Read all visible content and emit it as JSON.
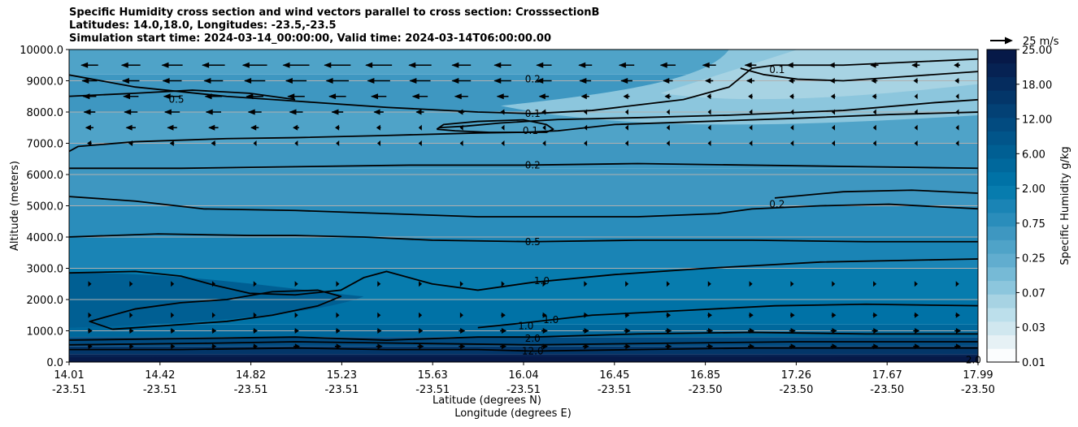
{
  "titles": {
    "line1": "Specific Humidity cross section and wind vectors parallel to cross section: CrosssectionB",
    "line2": "Latitudes: 14.0,18.0, Longitudes: -23.5,-23.5",
    "line3": "Simulation start time: 2024-03-14_00:00:00, Valid time: 2024-03-14T06:00:00.00"
  },
  "chart_data": {
    "type": "heatmap",
    "title": "Specific Humidity cross section and wind vectors parallel to cross section: CrosssectionB",
    "ylabel": "Altitude (meters)",
    "xlabel_line1": "Latitude (degrees N)",
    "xlabel_line2": "Longitude (degrees E)",
    "ylim": [
      0,
      10000
    ],
    "xlim": [
      14.01,
      17.99
    ],
    "y_ticks": [
      "0.0",
      "1000.0",
      "2000.0",
      "3000.0",
      "4000.0",
      "5000.0",
      "6000.0",
      "7000.0",
      "8000.0",
      "9000.0",
      "10000.0"
    ],
    "x_ticks": [
      {
        "lat": "14.01",
        "lon": "-23.51"
      },
      {
        "lat": "14.42",
        "lon": "-23.51"
      },
      {
        "lat": "14.82",
        "lon": "-23.51"
      },
      {
        "lat": "15.23",
        "lon": "-23.51"
      },
      {
        "lat": "15.63",
        "lon": "-23.51"
      },
      {
        "lat": "16.04",
        "lon": "-23.51"
      },
      {
        "lat": "16.45",
        "lon": "-23.51"
      },
      {
        "lat": "16.85",
        "lon": "-23.50"
      },
      {
        "lat": "17.26",
        "lon": "-23.50"
      },
      {
        "lat": "17.67",
        "lon": "-23.50"
      },
      {
        "lat": "17.99",
        "lon": "-23.50"
      }
    ],
    "grid": true,
    "colorbar": {
      "label": "Specific Humidity g/kg",
      "tick_labels": [
        "0.01",
        "0.03",
        "0.07",
        "0.25",
        "0.75",
        "2.00",
        "6.00",
        "12.00",
        "18.00",
        "25.00"
      ],
      "colors": [
        "#fbfdfe",
        "#e6f1f5",
        "#d0e7ef",
        "#bcdfeb",
        "#a7d3e3",
        "#8cc6dd",
        "#76bad6",
        "#61adcf",
        "#4fa3c8",
        "#3e97c1",
        "#2a8dbb",
        "#1a84b5",
        "#077cae",
        "#0072a6",
        "#00689c",
        "#005f93",
        "#01558a",
        "#024b80",
        "#034175",
        "#033669",
        "#052c5e",
        "#062253",
        "#061948"
      ]
    },
    "quiver_key": "25 m/s",
    "contour_levels": [
      "0.1",
      "0.2",
      "0.5",
      "1.0",
      "2.0",
      "12.0"
    ],
    "contour_labels": [
      {
        "text": "0.2",
        "lat": 16.04,
        "alt": 9050
      },
      {
        "text": "0.1",
        "lat": 16.04,
        "alt": 7950
      },
      {
        "text": "0.1",
        "lat": 16.03,
        "alt": 7400
      },
      {
        "text": "0.2",
        "lat": 16.04,
        "alt": 6300
      },
      {
        "text": "0.5",
        "lat": 16.04,
        "alt": 3850
      },
      {
        "text": "1.0",
        "lat": 16.08,
        "alt": 2600
      },
      {
        "text": "1.0",
        "lat": 16.01,
        "alt": 1150
      },
      {
        "text": "1.0",
        "lat": 16.12,
        "alt": 1350
      },
      {
        "text": "2.0",
        "lat": 16.04,
        "alt": 750
      },
      {
        "text": "12.0",
        "lat": 16.04,
        "alt": 350
      },
      {
        "text": "0.5",
        "lat": 14.48,
        "alt": 8400
      },
      {
        "text": "0.1",
        "lat": 17.11,
        "alt": 9350
      },
      {
        "text": "0.2",
        "lat": 17.11,
        "alt": 5050
      },
      {
        "text": "2.0",
        "lat": 17.97,
        "alt": 60
      }
    ],
    "contours": [
      {
        "level": "0.1",
        "points": [
          [
            14.0,
            6700
          ],
          [
            14.05,
            6900
          ],
          [
            14.3,
            7050
          ],
          [
            14.7,
            7150
          ],
          [
            15.0,
            7180
          ],
          [
            15.4,
            7250
          ],
          [
            15.8,
            7330
          ],
          [
            16.0,
            7350
          ],
          [
            16.15,
            7400
          ],
          [
            16.4,
            7600
          ],
          [
            16.8,
            7700
          ],
          [
            17.2,
            7800
          ],
          [
            17.6,
            7920
          ],
          [
            18.0,
            8000
          ]
        ]
      },
      {
        "level": "0.1",
        "points": [
          [
            15.63,
            7500
          ],
          [
            15.75,
            7550
          ],
          [
            15.9,
            7650
          ],
          [
            16.15,
            7760
          ],
          [
            16.5,
            7820
          ],
          [
            16.9,
            7900
          ],
          [
            17.4,
            8050
          ],
          [
            17.8,
            8300
          ],
          [
            18.0,
            8400
          ]
        ]
      },
      {
        "level": "0.1",
        "points": [
          [
            15.62,
            7450
          ],
          [
            15.7,
            7400
          ],
          [
            15.85,
            7350
          ],
          [
            16.1,
            7350
          ],
          [
            16.13,
            7450
          ],
          [
            16.1,
            7600
          ],
          [
            16.0,
            7750
          ],
          [
            15.8,
            7700
          ],
          [
            15.65,
            7600
          ],
          [
            15.62,
            7450
          ]
        ]
      },
      {
        "level": "0.1",
        "points": [
          [
            16.95,
            9400
          ],
          [
            17.05,
            9200
          ],
          [
            17.2,
            9050
          ],
          [
            17.4,
            9000
          ],
          [
            17.7,
            9150
          ],
          [
            18.0,
            9300
          ]
        ]
      },
      {
        "level": "0.2",
        "points": [
          [
            14.0,
            9200
          ],
          [
            14.3,
            8800
          ],
          [
            14.7,
            8500
          ],
          [
            15.0,
            8350
          ],
          [
            15.4,
            8150
          ],
          [
            15.8,
            8000
          ],
          [
            16.04,
            7950
          ],
          [
            16.3,
            8050
          ],
          [
            16.7,
            8400
          ],
          [
            16.9,
            8800
          ],
          [
            17.0,
            9400
          ],
          [
            17.1,
            9500
          ],
          [
            17.4,
            9500
          ],
          [
            17.7,
            9600
          ],
          [
            18.0,
            9700
          ]
        ]
      },
      {
        "level": "0.2",
        "points": [
          [
            14.0,
            6200
          ],
          [
            14.5,
            6200
          ],
          [
            15.0,
            6250
          ],
          [
            15.5,
            6300
          ],
          [
            16.0,
            6300
          ],
          [
            16.5,
            6350
          ],
          [
            17.0,
            6300
          ],
          [
            17.5,
            6250
          ],
          [
            18.0,
            6200
          ]
        ]
      },
      {
        "level": "0.2",
        "points": [
          [
            14.0,
            5300
          ],
          [
            14.3,
            5150
          ],
          [
            14.6,
            4900
          ],
          [
            15.0,
            4850
          ],
          [
            15.4,
            4750
          ],
          [
            15.8,
            4650
          ],
          [
            16.04,
            4650
          ],
          [
            16.5,
            4650
          ],
          [
            16.85,
            4750
          ],
          [
            17.0,
            4900
          ],
          [
            17.3,
            5000
          ],
          [
            17.6,
            5050
          ],
          [
            18.0,
            4900
          ]
        ]
      },
      {
        "level": "0.2",
        "points": [
          [
            17.1,
            5250
          ],
          [
            17.4,
            5450
          ],
          [
            17.7,
            5500
          ],
          [
            18.0,
            5400
          ]
        ]
      },
      {
        "level": "0.5",
        "points": [
          [
            14.0,
            4000
          ],
          [
            14.4,
            4100
          ],
          [
            14.8,
            4050
          ],
          [
            15.0,
            4050
          ],
          [
            15.3,
            4000
          ],
          [
            15.6,
            3900
          ],
          [
            16.04,
            3850
          ],
          [
            16.5,
            3900
          ],
          [
            17.0,
            3900
          ],
          [
            17.5,
            3850
          ],
          [
            18.0,
            3850
          ]
        ]
      },
      {
        "level": "0.5",
        "points": [
          [
            14.0,
            8500
          ],
          [
            14.3,
            8600
          ],
          [
            14.55,
            8700
          ],
          [
            14.8,
            8600
          ],
          [
            15.0,
            8400
          ]
        ]
      },
      {
        "level": "1.0",
        "points": [
          [
            14.0,
            2850
          ],
          [
            14.3,
            2900
          ],
          [
            14.5,
            2750
          ],
          [
            14.65,
            2450
          ],
          [
            14.8,
            2200
          ],
          [
            15.0,
            2150
          ],
          [
            15.2,
            2300
          ],
          [
            15.3,
            2700
          ],
          [
            15.4,
            2900
          ],
          [
            15.6,
            2500
          ],
          [
            15.8,
            2300
          ],
          [
            16.04,
            2550
          ],
          [
            16.4,
            2800
          ],
          [
            16.8,
            3000
          ],
          [
            17.3,
            3200
          ],
          [
            18.0,
            3300
          ]
        ]
      },
      {
        "level": "1.0",
        "points": [
          [
            14.2,
            1050
          ],
          [
            14.4,
            1150
          ],
          [
            14.7,
            1300
          ],
          [
            14.9,
            1500
          ],
          [
            15.1,
            1800
          ],
          [
            15.2,
            2100
          ],
          [
            15.1,
            2300
          ],
          [
            14.9,
            2250
          ],
          [
            14.7,
            2000
          ],
          [
            14.5,
            1900
          ],
          [
            14.3,
            1700
          ],
          [
            14.1,
            1300
          ],
          [
            14.2,
            1050
          ]
        ]
      },
      {
        "level": "1.0",
        "points": [
          [
            15.8,
            1100
          ],
          [
            16.0,
            1250
          ],
          [
            16.3,
            1500
          ],
          [
            16.7,
            1650
          ],
          [
            17.1,
            1800
          ],
          [
            17.5,
            1850
          ],
          [
            18.0,
            1800
          ]
        ]
      },
      {
        "level": "2.0",
        "points": [
          [
            14.0,
            700
          ],
          [
            14.5,
            750
          ],
          [
            15.0,
            800
          ],
          [
            15.4,
            700
          ],
          [
            15.8,
            800
          ],
          [
            16.04,
            800
          ],
          [
            16.5,
            900
          ],
          [
            17.0,
            950
          ],
          [
            17.5,
            900
          ],
          [
            18.0,
            900
          ]
        ]
      },
      {
        "level": "12.0",
        "points": [
          [
            14.0,
            400
          ],
          [
            14.5,
            400
          ],
          [
            15.0,
            450
          ],
          [
            15.4,
            400
          ],
          [
            15.8,
            400
          ],
          [
            16.04,
            350
          ],
          [
            16.5,
            400
          ],
          [
            17.0,
            450
          ],
          [
            17.5,
            450
          ],
          [
            18.0,
            450
          ]
        ]
      },
      {
        "level": "12.0",
        "points": [
          [
            14.0,
            550
          ],
          [
            14.6,
            600
          ],
          [
            15.0,
            650
          ],
          [
            15.5,
            600
          ],
          [
            16.04,
            550
          ],
          [
            16.6,
            600
          ],
          [
            17.2,
            650
          ],
          [
            18.0,
            650
          ]
        ]
      }
    ],
    "wind_rows": [
      {
        "alt": 9500,
        "u": [
          -9,
          -10,
          -11,
          -12,
          -13,
          -14,
          -14,
          -14,
          -12,
          -10,
          -9,
          -8,
          -7,
          -8,
          -8,
          -7,
          -6,
          -5,
          -4,
          -4,
          -4,
          -3
        ]
      },
      {
        "alt": 9000,
        "u": [
          -8,
          -9,
          -10,
          -10,
          -11,
          -11,
          -12,
          -12,
          -11,
          -10,
          -9,
          -8,
          -6,
          -6,
          -5,
          -4,
          -4,
          -3,
          -3,
          -3,
          -2,
          -2
        ]
      },
      {
        "alt": 8500,
        "u": [
          -7,
          -8,
          -9,
          -9,
          -9,
          -9,
          -9,
          -8,
          -8,
          -7,
          -6,
          -5,
          -4,
          -3,
          -3,
          -2,
          -2,
          -2,
          -2,
          -2,
          -1,
          -1
        ]
      },
      {
        "alt": 8000,
        "u": [
          -6,
          -7,
          -8,
          -8,
          -7,
          -7,
          -6,
          -5,
          -4,
          -3,
          -2,
          -2,
          -1,
          -1,
          -1,
          -1,
          -1,
          -1,
          -1,
          -1,
          -1,
          -1
        ]
      },
      {
        "alt": 7500,
        "u": [
          -4,
          -5,
          -5,
          -5,
          -4,
          -3,
          -2,
          -2,
          -1,
          -1,
          -1,
          -1,
          -1,
          -1,
          -1,
          -1,
          -1,
          -1,
          -1,
          -1,
          -1,
          -1
        ]
      },
      {
        "alt": 7000,
        "u": [
          -2,
          -2,
          -2,
          -2,
          -1,
          -1,
          -1,
          -1,
          -1,
          -1,
          -1,
          -1,
          -1,
          -1,
          -1,
          -1,
          -1,
          -1,
          -1,
          -1,
          -1,
          -1
        ]
      },
      {
        "alt": 2500,
        "u": [
          1,
          1,
          1,
          1,
          1,
          1,
          1,
          1,
          1,
          1,
          1,
          1,
          1,
          1,
          1,
          1,
          1,
          1,
          1,
          1,
          1,
          1
        ]
      },
      {
        "alt": 1500,
        "u": [
          1,
          1,
          1,
          1,
          1,
          1,
          1,
          1,
          1,
          1,
          2,
          2,
          2,
          2,
          2,
          2,
          2,
          2,
          2,
          2,
          2,
          2
        ]
      },
      {
        "alt": 1000,
        "u": [
          2,
          2,
          2,
          2,
          2,
          2,
          2,
          2,
          2,
          3,
          3,
          3,
          3,
          3,
          3,
          3,
          3,
          3,
          3,
          3,
          3,
          3
        ]
      },
      {
        "alt": 500,
        "u": [
          2,
          2,
          2,
          2,
          2,
          3,
          3,
          3,
          3,
          3,
          3,
          3,
          3,
          3,
          3,
          3,
          3,
          3,
          3,
          3,
          3,
          3
        ]
      }
    ]
  }
}
